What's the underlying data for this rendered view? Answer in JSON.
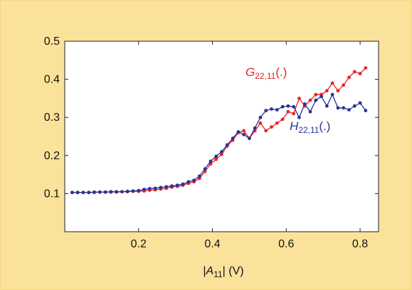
{
  "chart_data": {
    "type": "line",
    "title": "",
    "xlabel": "",
    "ylabel": "",
    "xlim": [
      0.0,
      0.85
    ],
    "ylim": [
      0.0,
      0.5
    ],
    "x_ticks": [
      0.2,
      0.4,
      0.6,
      0.8
    ],
    "y_ticks": [
      0.1,
      0.2,
      0.3,
      0.4,
      0.5
    ],
    "x_tick_labels": [
      "0.2",
      "0.4",
      "0.6",
      "0.8"
    ],
    "y_tick_labels": [
      "0.1",
      "0.2",
      "0.3",
      "0.4",
      "0.5"
    ],
    "grid": false,
    "xlabel_parts": {
      "open": "|",
      "var": "A",
      "sub": "11",
      "close": "| (V)"
    },
    "series": [
      {
        "name": "G22,11(.)",
        "label_parts": {
          "var": "G",
          "sub": "22,11",
          "suffix": "(.)"
        },
        "color": "#e8232a",
        "points": [
          [
            0.02,
            0.103
          ],
          [
            0.035,
            0.103
          ],
          [
            0.05,
            0.103
          ],
          [
            0.065,
            0.103
          ],
          [
            0.08,
            0.103
          ],
          [
            0.095,
            0.104
          ],
          [
            0.11,
            0.104
          ],
          [
            0.125,
            0.104
          ],
          [
            0.14,
            0.104
          ],
          [
            0.155,
            0.105
          ],
          [
            0.17,
            0.105
          ],
          [
            0.185,
            0.106
          ],
          [
            0.2,
            0.106
          ],
          [
            0.215,
            0.107
          ],
          [
            0.23,
            0.109
          ],
          [
            0.245,
            0.11
          ],
          [
            0.26,
            0.112
          ],
          [
            0.275,
            0.114
          ],
          [
            0.29,
            0.117
          ],
          [
            0.305,
            0.119
          ],
          [
            0.32,
            0.122
          ],
          [
            0.335,
            0.127
          ],
          [
            0.35,
            0.131
          ],
          [
            0.365,
            0.14
          ],
          [
            0.38,
            0.158
          ],
          [
            0.395,
            0.178
          ],
          [
            0.41,
            0.19
          ],
          [
            0.425,
            0.203
          ],
          [
            0.44,
            0.225
          ],
          [
            0.455,
            0.24
          ],
          [
            0.47,
            0.26
          ],
          [
            0.485,
            0.265
          ],
          [
            0.5,
            0.245
          ],
          [
            0.515,
            0.265
          ],
          [
            0.53,
            0.285
          ],
          [
            0.545,
            0.265
          ],
          [
            0.56,
            0.275
          ],
          [
            0.575,
            0.285
          ],
          [
            0.59,
            0.295
          ],
          [
            0.605,
            0.315
          ],
          [
            0.62,
            0.31
          ],
          [
            0.635,
            0.35
          ],
          [
            0.65,
            0.33
          ],
          [
            0.665,
            0.345
          ],
          [
            0.68,
            0.36
          ],
          [
            0.695,
            0.36
          ],
          [
            0.71,
            0.37
          ],
          [
            0.725,
            0.39
          ],
          [
            0.74,
            0.37
          ],
          [
            0.755,
            0.385
          ],
          [
            0.77,
            0.405
          ],
          [
            0.785,
            0.42
          ],
          [
            0.8,
            0.415
          ],
          [
            0.815,
            0.43
          ]
        ]
      },
      {
        "name": "H22,11(.)",
        "label_parts": {
          "var": "H",
          "sub": "22,11",
          "suffix": "(.)"
        },
        "color": "#283593",
        "points": [
          [
            0.02,
            0.103
          ],
          [
            0.035,
            0.103
          ],
          [
            0.05,
            0.103
          ],
          [
            0.065,
            0.103
          ],
          [
            0.08,
            0.104
          ],
          [
            0.095,
            0.104
          ],
          [
            0.11,
            0.104
          ],
          [
            0.125,
            0.105
          ],
          [
            0.14,
            0.105
          ],
          [
            0.155,
            0.105
          ],
          [
            0.17,
            0.106
          ],
          [
            0.185,
            0.107
          ],
          [
            0.2,
            0.108
          ],
          [
            0.215,
            0.111
          ],
          [
            0.23,
            0.113
          ],
          [
            0.245,
            0.114
          ],
          [
            0.26,
            0.116
          ],
          [
            0.275,
            0.118
          ],
          [
            0.29,
            0.12
          ],
          [
            0.305,
            0.122
          ],
          [
            0.32,
            0.125
          ],
          [
            0.335,
            0.131
          ],
          [
            0.35,
            0.135
          ],
          [
            0.365,
            0.146
          ],
          [
            0.38,
            0.165
          ],
          [
            0.395,
            0.185
          ],
          [
            0.41,
            0.198
          ],
          [
            0.425,
            0.21
          ],
          [
            0.44,
            0.228
          ],
          [
            0.455,
            0.245
          ],
          [
            0.47,
            0.262
          ],
          [
            0.485,
            0.255
          ],
          [
            0.5,
            0.245
          ],
          [
            0.515,
            0.272
          ],
          [
            0.53,
            0.3
          ],
          [
            0.545,
            0.318
          ],
          [
            0.56,
            0.322
          ],
          [
            0.575,
            0.32
          ],
          [
            0.59,
            0.328
          ],
          [
            0.605,
            0.33
          ],
          [
            0.62,
            0.328
          ],
          [
            0.635,
            0.3
          ],
          [
            0.65,
            0.335
          ],
          [
            0.665,
            0.315
          ],
          [
            0.68,
            0.345
          ],
          [
            0.695,
            0.355
          ],
          [
            0.71,
            0.33
          ],
          [
            0.725,
            0.36
          ],
          [
            0.74,
            0.325
          ],
          [
            0.755,
            0.325
          ],
          [
            0.77,
            0.32
          ],
          [
            0.785,
            0.33
          ],
          [
            0.8,
            0.338
          ],
          [
            0.815,
            0.318
          ]
        ]
      }
    ]
  }
}
